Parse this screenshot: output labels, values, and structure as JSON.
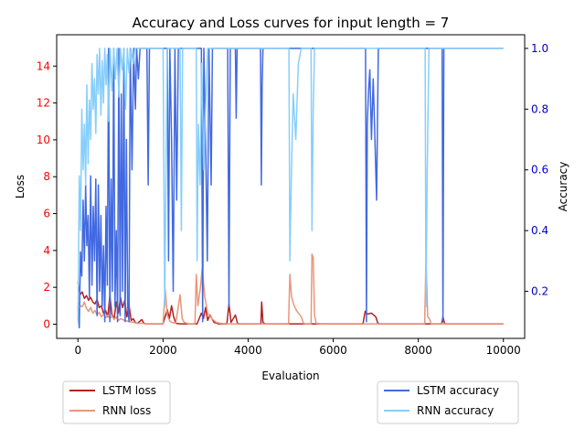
{
  "chart_data": {
    "type": "line",
    "title": "Accuracy and Loss curves for input length = 7",
    "xlabel": "Evaluation",
    "ylabel_left": "Loss",
    "ylabel_right": "Accuracy",
    "xlim": [
      -500,
      10500
    ],
    "ylim_left": [
      -0.77,
      15.7
    ],
    "ylim_right": [
      0.045,
      1.045
    ],
    "x_ticks": [
      0,
      2000,
      4000,
      6000,
      8000,
      10000
    ],
    "y_ticks_left": [
      0,
      2,
      4,
      6,
      8,
      10,
      12,
      14
    ],
    "y_ticks_right": [
      0.2,
      0.4,
      0.6,
      0.8,
      1.0
    ],
    "x_tick_labels": [
      "0",
      "2000",
      "4000",
      "6000",
      "8000",
      "10000"
    ],
    "y_tick_labels_left": [
      "0",
      "2",
      "4",
      "6",
      "8",
      "10",
      "12",
      "14"
    ],
    "y_tick_labels_right": [
      "0.2",
      "0.4",
      "0.6",
      "0.8",
      "1.0"
    ],
    "left_axis_color": "#ff0000",
    "right_axis_color": "#0000cc",
    "grid": false,
    "legends": [
      {
        "placement": "below-left",
        "entries": [
          "LSTM loss",
          "RNN loss"
        ]
      },
      {
        "placement": "below-right",
        "entries": [
          "LSTM accuracy",
          "RNN accuracy"
        ]
      }
    ],
    "series": [
      {
        "name": "LSTM loss",
        "axis": "left",
        "color": "#b22222",
        "points": [
          [
            0,
            2.3
          ],
          [
            50,
            1.6
          ],
          [
            100,
            1.75
          ],
          [
            150,
            1.4
          ],
          [
            200,
            1.55
          ],
          [
            250,
            1.3
          ],
          [
            300,
            1.45
          ],
          [
            350,
            1.2
          ],
          [
            400,
            1.1
          ],
          [
            450,
            1.35
          ],
          [
            500,
            0.9
          ],
          [
            550,
            1.0
          ],
          [
            600,
            0.6
          ],
          [
            650,
            0.75
          ],
          [
            700,
            0.4
          ],
          [
            750,
            1.55
          ],
          [
            800,
            0.5
          ],
          [
            850,
            0.3
          ],
          [
            900,
            1.2
          ],
          [
            950,
            0.6
          ],
          [
            1000,
            1.45
          ],
          [
            1050,
            0.9
          ],
          [
            1100,
            1.3
          ],
          [
            1150,
            0.4
          ],
          [
            1200,
            1.05
          ],
          [
            1250,
            0.2
          ],
          [
            1300,
            0.3
          ],
          [
            1350,
            0.08
          ],
          [
            1400,
            0.05
          ],
          [
            1500,
            0.25
          ],
          [
            1550,
            0.05
          ],
          [
            1600,
            0.02
          ],
          [
            1700,
            0.02
          ],
          [
            2000,
            0.02
          ],
          [
            2100,
            0.8
          ],
          [
            2150,
            0.3
          ],
          [
            2200,
            1.0
          ],
          [
            2250,
            0.4
          ],
          [
            2300,
            0.05
          ],
          [
            2400,
            0.02
          ],
          [
            2800,
            0.02
          ],
          [
            2900,
            0.6
          ],
          [
            2950,
            0.3
          ],
          [
            3000,
            0.9
          ],
          [
            3050,
            0.2
          ],
          [
            3100,
            0.5
          ],
          [
            3200,
            0.1
          ],
          [
            3300,
            0.02
          ],
          [
            3500,
            0.02
          ],
          [
            3550,
            1.1
          ],
          [
            3600,
            0.1
          ],
          [
            3700,
            0.5
          ],
          [
            3750,
            0.05
          ],
          [
            3800,
            0.02
          ],
          [
            4300,
            0.02
          ],
          [
            4320,
            1.2
          ],
          [
            4350,
            0.1
          ],
          [
            4400,
            0.02
          ],
          [
            6700,
            0.02
          ],
          [
            6750,
            0.7
          ],
          [
            6800,
            0.55
          ],
          [
            6900,
            0.6
          ],
          [
            7000,
            0.4
          ],
          [
            7050,
            0.05
          ],
          [
            7100,
            0.02
          ],
          [
            8550,
            0.02
          ],
          [
            8580,
            0.4
          ],
          [
            8620,
            0.02
          ],
          [
            10000,
            0.02
          ]
        ]
      },
      {
        "name": "RNN loss",
        "axis": "left",
        "color": "#e8967a",
        "points": [
          [
            0,
            1.2
          ],
          [
            50,
            1.0
          ],
          [
            100,
            0.95
          ],
          [
            150,
            1.2
          ],
          [
            200,
            0.85
          ],
          [
            250,
            0.7
          ],
          [
            300,
            0.9
          ],
          [
            350,
            0.6
          ],
          [
            400,
            0.75
          ],
          [
            450,
            0.5
          ],
          [
            500,
            0.65
          ],
          [
            550,
            0.4
          ],
          [
            600,
            0.55
          ],
          [
            650,
            0.35
          ],
          [
            700,
            0.5
          ],
          [
            750,
            0.3
          ],
          [
            800,
            0.45
          ],
          [
            850,
            0.25
          ],
          [
            900,
            0.4
          ],
          [
            950,
            0.2
          ],
          [
            1000,
            0.3
          ],
          [
            1100,
            0.2
          ],
          [
            1200,
            0.15
          ],
          [
            1300,
            0.1
          ],
          [
            1400,
            0.05
          ],
          [
            1500,
            0.05
          ],
          [
            1600,
            0.02
          ],
          [
            2000,
            0.02
          ],
          [
            2050,
            1.9
          ],
          [
            2100,
            0.5
          ],
          [
            2150,
            0.2
          ],
          [
            2200,
            0.1
          ],
          [
            2300,
            0.05
          ],
          [
            2400,
            1.6
          ],
          [
            2450,
            0.3
          ],
          [
            2500,
            0.1
          ],
          [
            2600,
            0.02
          ],
          [
            2750,
            0.02
          ],
          [
            2780,
            2.7
          ],
          [
            2820,
            1.0
          ],
          [
            2880,
            2.0
          ],
          [
            2920,
            3.0
          ],
          [
            2980,
            1.5
          ],
          [
            3050,
            0.6
          ],
          [
            3150,
            0.3
          ],
          [
            3250,
            0.1
          ],
          [
            3350,
            0.05
          ],
          [
            3500,
            0.02
          ],
          [
            4950,
            0.02
          ],
          [
            4980,
            2.7
          ],
          [
            5020,
            1.5
          ],
          [
            5080,
            1.0
          ],
          [
            5150,
            0.7
          ],
          [
            5250,
            0.4
          ],
          [
            5300,
            0.05
          ],
          [
            5350,
            0.02
          ],
          [
            5480,
            0.02
          ],
          [
            5500,
            3.8
          ],
          [
            5530,
            3.6
          ],
          [
            5560,
            0.5
          ],
          [
            5600,
            0.05
          ],
          [
            5700,
            0.02
          ],
          [
            8150,
            0.02
          ],
          [
            8180,
            3.6
          ],
          [
            8220,
            0.4
          ],
          [
            8260,
            0.3
          ],
          [
            8300,
            0.02
          ],
          [
            10000,
            0.02
          ]
        ]
      },
      {
        "name": "LSTM accuracy",
        "axis": "right",
        "color": "#4169e1",
        "points": [
          [
            0,
            0.15
          ],
          [
            30,
            0.08
          ],
          [
            60,
            0.33
          ],
          [
            90,
            0.25
          ],
          [
            120,
            0.5
          ],
          [
            150,
            0.3
          ],
          [
            180,
            0.55
          ],
          [
            210,
            0.35
          ],
          [
            240,
            0.45
          ],
          [
            270,
            0.18
          ],
          [
            300,
            0.58
          ],
          [
            330,
            0.22
          ],
          [
            360,
            0.48
          ],
          [
            390,
            0.3
          ],
          [
            420,
            0.57
          ],
          [
            450,
            0.12
          ],
          [
            480,
            0.55
          ],
          [
            510,
            0.2
          ],
          [
            540,
            0.45
          ],
          [
            570,
            0.15
          ],
          [
            600,
            0.35
          ],
          [
            630,
            0.1
          ],
          [
            660,
            0.48
          ],
          [
            690,
            0.22
          ],
          [
            720,
            1.0
          ],
          [
            750,
            0.1
          ],
          [
            780,
            0.57
          ],
          [
            810,
            0.2
          ],
          [
            840,
            1.0
          ],
          [
            870,
            0.15
          ],
          [
            900,
            0.4
          ],
          [
            930,
            0.1
          ],
          [
            960,
            1.0
          ],
          [
            990,
            0.12
          ],
          [
            1020,
            0.85
          ],
          [
            1050,
            0.2
          ],
          [
            1080,
            1.0
          ],
          [
            1110,
            0.1
          ],
          [
            1140,
            0.7
          ],
          [
            1170,
            0.15
          ],
          [
            1200,
            0.1
          ],
          [
            1230,
            1.0
          ],
          [
            1270,
            0.6
          ],
          [
            1310,
            1.0
          ],
          [
            1350,
            0.8
          ],
          [
            1380,
            1.0
          ],
          [
            1420,
            0.9
          ],
          [
            1460,
            1.0
          ],
          [
            1620,
            1.0
          ],
          [
            1650,
            0.55
          ],
          [
            1680,
            1.0
          ],
          [
            2100,
            1.0
          ],
          [
            2130,
            0.3
          ],
          [
            2160,
            1.0
          ],
          [
            2200,
            0.7
          ],
          [
            2240,
            0.2
          ],
          [
            2280,
            1.0
          ],
          [
            2320,
            0.5
          ],
          [
            2360,
            1.0
          ],
          [
            2900,
            1.0
          ],
          [
            2930,
            0.1
          ],
          [
            2960,
            1.0
          ],
          [
            3000,
            0.7
          ],
          [
            3040,
            0.3
          ],
          [
            3080,
            1.0
          ],
          [
            3130,
            0.55
          ],
          [
            3160,
            1.0
          ],
          [
            3520,
            1.0
          ],
          [
            3550,
            0.15
          ],
          [
            3580,
            1.0
          ],
          [
            3700,
            1.0
          ],
          [
            3720,
            0.77
          ],
          [
            3740,
            1.0
          ],
          [
            4290,
            1.0
          ],
          [
            4310,
            0.55
          ],
          [
            4330,
            0.88
          ],
          [
            4350,
            1.0
          ],
          [
            6760,
            1.0
          ],
          [
            6780,
            0.1
          ],
          [
            6800,
            0.75
          ],
          [
            6830,
            0.86
          ],
          [
            6860,
            0.93
          ],
          [
            6900,
            0.7
          ],
          [
            6940,
            0.9
          ],
          [
            6980,
            0.7
          ],
          [
            7020,
            0.5
          ],
          [
            7060,
            1.0
          ],
          [
            8560,
            1.0
          ],
          [
            8580,
            0.1
          ],
          [
            8600,
            1.0
          ],
          [
            10000,
            1.0
          ]
        ]
      },
      {
        "name": "RNN accuracy",
        "axis": "right",
        "color": "#87cefa",
        "points": [
          [
            0,
            0.1
          ],
          [
            30,
            0.58
          ],
          [
            60,
            0.4
          ],
          [
            90,
            0.8
          ],
          [
            120,
            0.6
          ],
          [
            150,
            0.75
          ],
          [
            180,
            0.55
          ],
          [
            210,
            0.88
          ],
          [
            240,
            0.62
          ],
          [
            270,
            0.83
          ],
          [
            300,
            0.7
          ],
          [
            330,
            0.95
          ],
          [
            360,
            0.8
          ],
          [
            390,
            0.9
          ],
          [
            420,
            0.72
          ],
          [
            450,
            0.98
          ],
          [
            480,
            0.85
          ],
          [
            510,
            1.0
          ],
          [
            540,
            0.78
          ],
          [
            570,
            0.96
          ],
          [
            600,
            0.82
          ],
          [
            630,
            1.0
          ],
          [
            660,
            0.88
          ],
          [
            690,
            0.98
          ],
          [
            720,
            0.76
          ],
          [
            760,
            1.0
          ],
          [
            800,
            0.86
          ],
          [
            840,
            1.0
          ],
          [
            880,
            0.9
          ],
          [
            920,
            1.0
          ],
          [
            960,
            0.84
          ],
          [
            1000,
            1.0
          ],
          [
            1040,
            0.93
          ],
          [
            1080,
            1.0
          ],
          [
            1120,
            0.8
          ],
          [
            1160,
            1.0
          ],
          [
            1200,
            0.92
          ],
          [
            1240,
            1.0
          ],
          [
            1300,
            0.95
          ],
          [
            1340,
            1.0
          ],
          [
            2000,
            1.0
          ],
          [
            2040,
            0.15
          ],
          [
            2070,
            0.6
          ],
          [
            2100,
            1.0
          ],
          [
            2400,
            1.0
          ],
          [
            2430,
            0.4
          ],
          [
            2460,
            1.0
          ],
          [
            2780,
            1.0
          ],
          [
            2800,
            0.3
          ],
          [
            2830,
            0.75
          ],
          [
            2870,
            0.55
          ],
          [
            2910,
            0.95
          ],
          [
            2960,
            0.6
          ],
          [
            3000,
            0.8
          ],
          [
            3050,
            1.0
          ],
          [
            4960,
            1.0
          ],
          [
            4980,
            0.3
          ],
          [
            5020,
            0.6
          ],
          [
            5060,
            0.85
          ],
          [
            5120,
            0.7
          ],
          [
            5180,
            0.95
          ],
          [
            5250,
            1.0
          ],
          [
            5480,
            1.0
          ],
          [
            5500,
            0.4
          ],
          [
            5530,
            0.8
          ],
          [
            5560,
            1.0
          ],
          [
            8160,
            1.0
          ],
          [
            8180,
            0.15
          ],
          [
            8210,
            0.6
          ],
          [
            8250,
            1.0
          ],
          [
            10000,
            1.0
          ]
        ]
      }
    ]
  }
}
